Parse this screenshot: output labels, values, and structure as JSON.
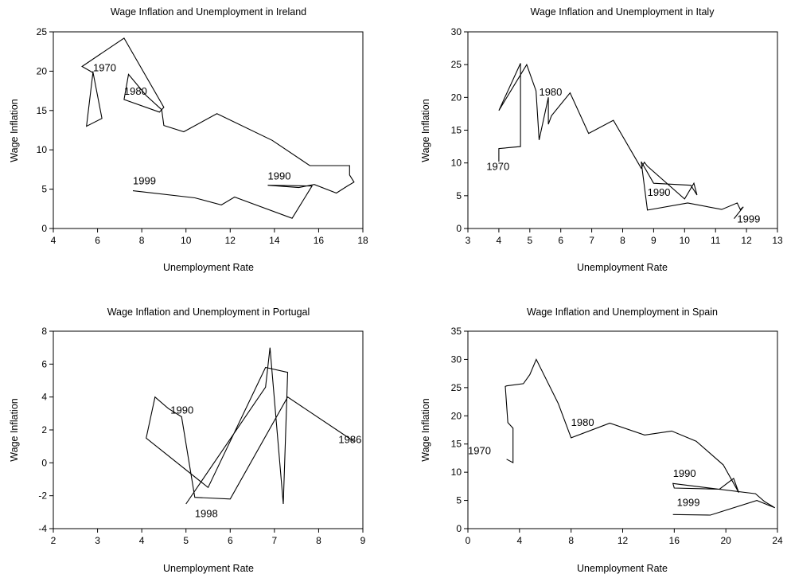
{
  "chart_data": [
    {
      "type": "line",
      "title": "Wage Inflation and Unemployment in Ireland",
      "xlabel": "Unemployment Rate",
      "ylabel": "Wage Inflation",
      "xlim": [
        4,
        18
      ],
      "ylim": [
        0,
        25
      ],
      "xticks": [
        4,
        6,
        8,
        10,
        12,
        14,
        16,
        18
      ],
      "yticks": [
        0,
        5,
        10,
        15,
        20,
        25
      ],
      "series": [
        {
          "x": [
            5.8,
            5.5,
            6.2,
            5.8,
            5.3,
            7.2,
            9.0,
            8.8,
            7.2,
            7.4,
            8.2,
            8.9,
            9.0,
            9.9,
            11.4,
            13.9,
            15.6,
            17.4,
            17.4,
            17.6,
            17.3,
            16.8,
            15.8,
            15.1,
            13.7,
            15.7,
            14.8,
            12.2,
            11.6,
            10.4,
            7.6
          ],
          "y": [
            20.0,
            13.0,
            14.0,
            19.8,
            20.6,
            24.2,
            15.4,
            14.8,
            16.4,
            19.6,
            16.9,
            15.1,
            13.1,
            12.3,
            14.6,
            11.2,
            8.0,
            8.0,
            6.8,
            5.9,
            5.4,
            4.5,
            5.6,
            5.2,
            5.5,
            5.4,
            1.3,
            4.0,
            3.0,
            3.9,
            4.8
          ]
        }
      ],
      "annotations": [
        {
          "text": "1970",
          "x": 5.8,
          "y": 20.0
        },
        {
          "text": "1980",
          "x": 7.2,
          "y": 17.0
        },
        {
          "text": "1990",
          "x": 13.7,
          "y": 6.2
        },
        {
          "text": "1999",
          "x": 7.6,
          "y": 5.6
        }
      ]
    },
    {
      "type": "line",
      "title": "Wage Inflation and Unemployment in Italy",
      "xlabel": "Unemployment Rate",
      "ylabel": "Wage Inflation",
      "xlim": [
        3,
        13
      ],
      "ylim": [
        0,
        30
      ],
      "xticks": [
        3,
        4,
        5,
        6,
        7,
        8,
        9,
        10,
        11,
        12,
        13
      ],
      "yticks": [
        0,
        5,
        10,
        15,
        20,
        25,
        30
      ],
      "series": [
        {
          "x": [
            4.0,
            4.0,
            4.7,
            4.7,
            4.0,
            4.9,
            5.2,
            5.3,
            5.6,
            5.6,
            5.7,
            6.3,
            6.9,
            7.7,
            8.6,
            8.7,
            8.8,
            10.0,
            10.3,
            10.4,
            10.2,
            9.0,
            8.6,
            8.8,
            10.1,
            11.2,
            11.7,
            11.8,
            11.9,
            11.6
          ],
          "y": [
            10.2,
            12.2,
            12.5,
            25.2,
            18.0,
            25.0,
            21.0,
            13.5,
            20.0,
            15.9,
            17.2,
            20.7,
            14.5,
            16.5,
            9.2,
            10.1,
            9.5,
            4.5,
            6.9,
            5.1,
            6.6,
            6.9,
            10.2,
            2.8,
            3.9,
            2.9,
            3.9,
            2.9,
            3.3,
            1.5
          ]
        }
      ],
      "annotations": [
        {
          "text": "1970",
          "x": 3.6,
          "y": 8.9
        },
        {
          "text": "1980",
          "x": 5.3,
          "y": 20.3
        },
        {
          "text": "1990",
          "x": 8.8,
          "y": 5.0
        },
        {
          "text": "1999",
          "x": 11.7,
          "y": 0.9
        }
      ]
    },
    {
      "type": "line",
      "title": "Wage Inflation and Unemployment in Portugal",
      "xlabel": "Unemployment Rate",
      "ylabel": "Wage Inflation",
      "xlim": [
        2,
        9
      ],
      "ylim": [
        -4,
        8
      ],
      "xticks": [
        2,
        3,
        4,
        5,
        6,
        7,
        8,
        9
      ],
      "yticks": [
        -4,
        -2,
        0,
        2,
        4,
        6,
        8
      ],
      "series": [
        {
          "x": [
            8.8,
            7.3,
            6.0,
            5.2,
            4.9,
            4.6,
            4.3,
            4.1,
            5.5,
            6.8,
            7.3,
            7.2,
            6.9,
            6.8,
            5.0
          ],
          "y": [
            1.3,
            4.0,
            -2.2,
            -2.1,
            2.8,
            3.3,
            4.0,
            1.5,
            -1.5,
            5.8,
            5.5,
            -2.5,
            7.0,
            4.6,
            -2.5
          ]
        }
      ],
      "annotations": [
        {
          "text": "1990",
          "x": 4.65,
          "y": 3.0
        },
        {
          "text": "1998",
          "x": 5.2,
          "y": -3.3
        },
        {
          "text": "1986",
          "x": 8.45,
          "y": 1.2
        }
      ]
    },
    {
      "type": "line",
      "title": "Wage Inflation and Unemployment in Spain",
      "xlabel": "Unemployment Rate",
      "ylabel": "Wage Inflation",
      "xlim": [
        0,
        24
      ],
      "ylim": [
        0,
        35
      ],
      "xticks": [
        0,
        4,
        8,
        12,
        16,
        20,
        24
      ],
      "yticks": [
        0,
        5,
        10,
        15,
        20,
        25,
        30,
        35
      ],
      "series": [
        {
          "x": [
            3.0,
            3.5,
            3.5,
            3.1,
            2.9,
            3.0,
            4.3,
            4.8,
            5.3,
            7.0,
            8.0,
            11.0,
            13.7,
            15.8,
            17.7,
            19.8,
            21.0,
            20.6,
            19.5,
            16.0,
            15.9,
            22.3,
            23.0,
            23.8,
            22.4,
            18.8,
            15.9
          ],
          "y": [
            12.3,
            11.7,
            17.8,
            18.8,
            25.2,
            25.3,
            25.7,
            27.3,
            30.0,
            22.2,
            16.1,
            18.7,
            16.6,
            17.3,
            15.5,
            11.3,
            6.4,
            8.9,
            7.0,
            7.2,
            8.0,
            6.2,
            4.8,
            3.7,
            5.0,
            2.4,
            2.5
          ]
        }
      ],
      "annotations": [
        {
          "text": "1970",
          "x": 0.0,
          "y": 13.2
        },
        {
          "text": "1980",
          "x": 8.0,
          "y": 18.2
        },
        {
          "text": "1990",
          "x": 15.9,
          "y": 9.2
        },
        {
          "text": "1999",
          "x": 16.2,
          "y": 4.0
        }
      ]
    }
  ]
}
